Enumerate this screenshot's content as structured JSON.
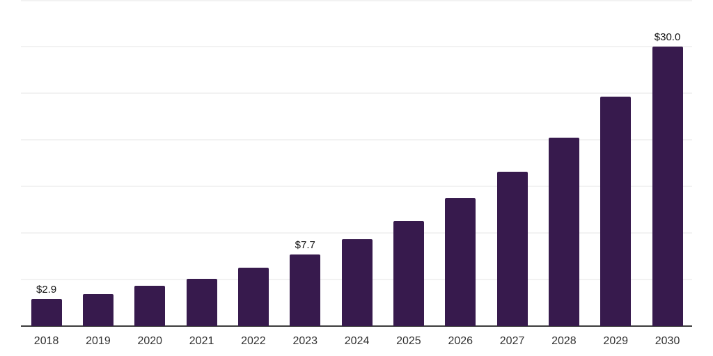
{
  "colors": {
    "background": "#ffffff",
    "bar": "#371A4D",
    "axis_line": "#3c3c3c",
    "gridline": "#f2f2f2",
    "value_label": "#111111",
    "tick_label": "#333333"
  },
  "chart_data": {
    "type": "bar",
    "title": "",
    "xlabel": "",
    "ylabel": "",
    "categories": [
      "2018",
      "2019",
      "2020",
      "2021",
      "2022",
      "2023",
      "2024",
      "2025",
      "2026",
      "2027",
      "2028",
      "2029",
      "2030"
    ],
    "values": [
      2.9,
      3.4,
      4.3,
      5.1,
      6.3,
      7.7,
      9.3,
      11.3,
      13.7,
      16.6,
      20.2,
      24.6,
      30.0
    ],
    "values_note": "only 2018, 2023 and 2030 carry visible data labels; other values estimated from bar heights",
    "data_labels": {
      "2018": "$2.9",
      "2023": "$7.7",
      "2030": "$30.0"
    },
    "unit_prefix": "$",
    "ylim": [
      0,
      35
    ],
    "grid_step": 5,
    "grid": true,
    "legend": false,
    "y_axis_labels_visible": false
  }
}
